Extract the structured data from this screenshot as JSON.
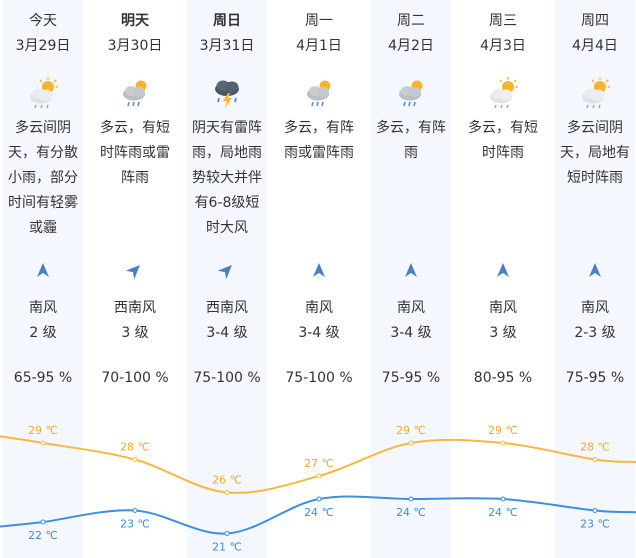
{
  "days": [
    {
      "day": "今天",
      "date": "3月29日",
      "icon": "cloudy-sun-rain-icon",
      "desc": "多云间阴天，有分散小雨，部分时间有轻雾或霾",
      "wind_dir": "南风",
      "wind_level": "2 级",
      "humidity": "65-95 %",
      "arrow_rotation": 0,
      "bold": false
    },
    {
      "day": "明天",
      "date": "3月30日",
      "icon": "cloudy-shower-icon",
      "desc": "多云，有短时阵雨或雷阵雨",
      "wind_dir": "西南风",
      "wind_level": "3 级",
      "humidity": "70-100 %",
      "arrow_rotation": 45,
      "bold": true
    },
    {
      "day": "周日",
      "date": "3月31日",
      "icon": "thunderstorm-icon",
      "desc": "阴天有雷阵雨，局地雨势较大并伴有6-8级短时大风",
      "wind_dir": "西南风",
      "wind_level": "3-4 级",
      "humidity": "75-100 %",
      "arrow_rotation": 45,
      "bold": true
    },
    {
      "day": "周一",
      "date": "4月1日",
      "icon": "cloudy-shower-icon",
      "desc": "多云，有阵雨或雷阵雨",
      "wind_dir": "南风",
      "wind_level": "3-4 级",
      "humidity": "75-100 %",
      "arrow_rotation": 0,
      "bold": false
    },
    {
      "day": "周二",
      "date": "4月2日",
      "icon": "cloudy-shower-icon",
      "desc": "多云，有阵雨",
      "wind_dir": "南风",
      "wind_level": "3-4 级",
      "humidity": "75-95 %",
      "arrow_rotation": 0,
      "bold": false
    },
    {
      "day": "周三",
      "date": "4月3日",
      "icon": "cloudy-sun-rain-icon",
      "desc": "多云，有短时阵雨",
      "wind_dir": "南风",
      "wind_level": "3 级",
      "humidity": "80-95 %",
      "arrow_rotation": 0,
      "bold": false
    },
    {
      "day": "周四",
      "date": "4月4日",
      "icon": "cloudy-sun-rain-icon",
      "desc": "多云间阴天，局地有短时阵雨",
      "wind_dir": "南风",
      "wind_level": "2-3 级",
      "humidity": "75-95 %",
      "arrow_rotation": 0,
      "bold": false
    }
  ],
  "colors": {
    "high": "#f5b942",
    "low": "#3d8fe0",
    "arrow": "#4a7fc1"
  },
  "chart_data": {
    "type": "line",
    "categories": [
      "3月29日",
      "3月30日",
      "3月31日",
      "4月1日",
      "4月2日",
      "4月3日",
      "4月4日"
    ],
    "series": [
      {
        "values": [
          29,
          28,
          26,
          27,
          29,
          29,
          28
        ]
      },
      {
        "values": [
          22,
          23,
          21,
          24,
          24,
          24,
          23
        ]
      }
    ],
    "unit": "℃",
    "ylim": [
      20,
      30
    ]
  }
}
